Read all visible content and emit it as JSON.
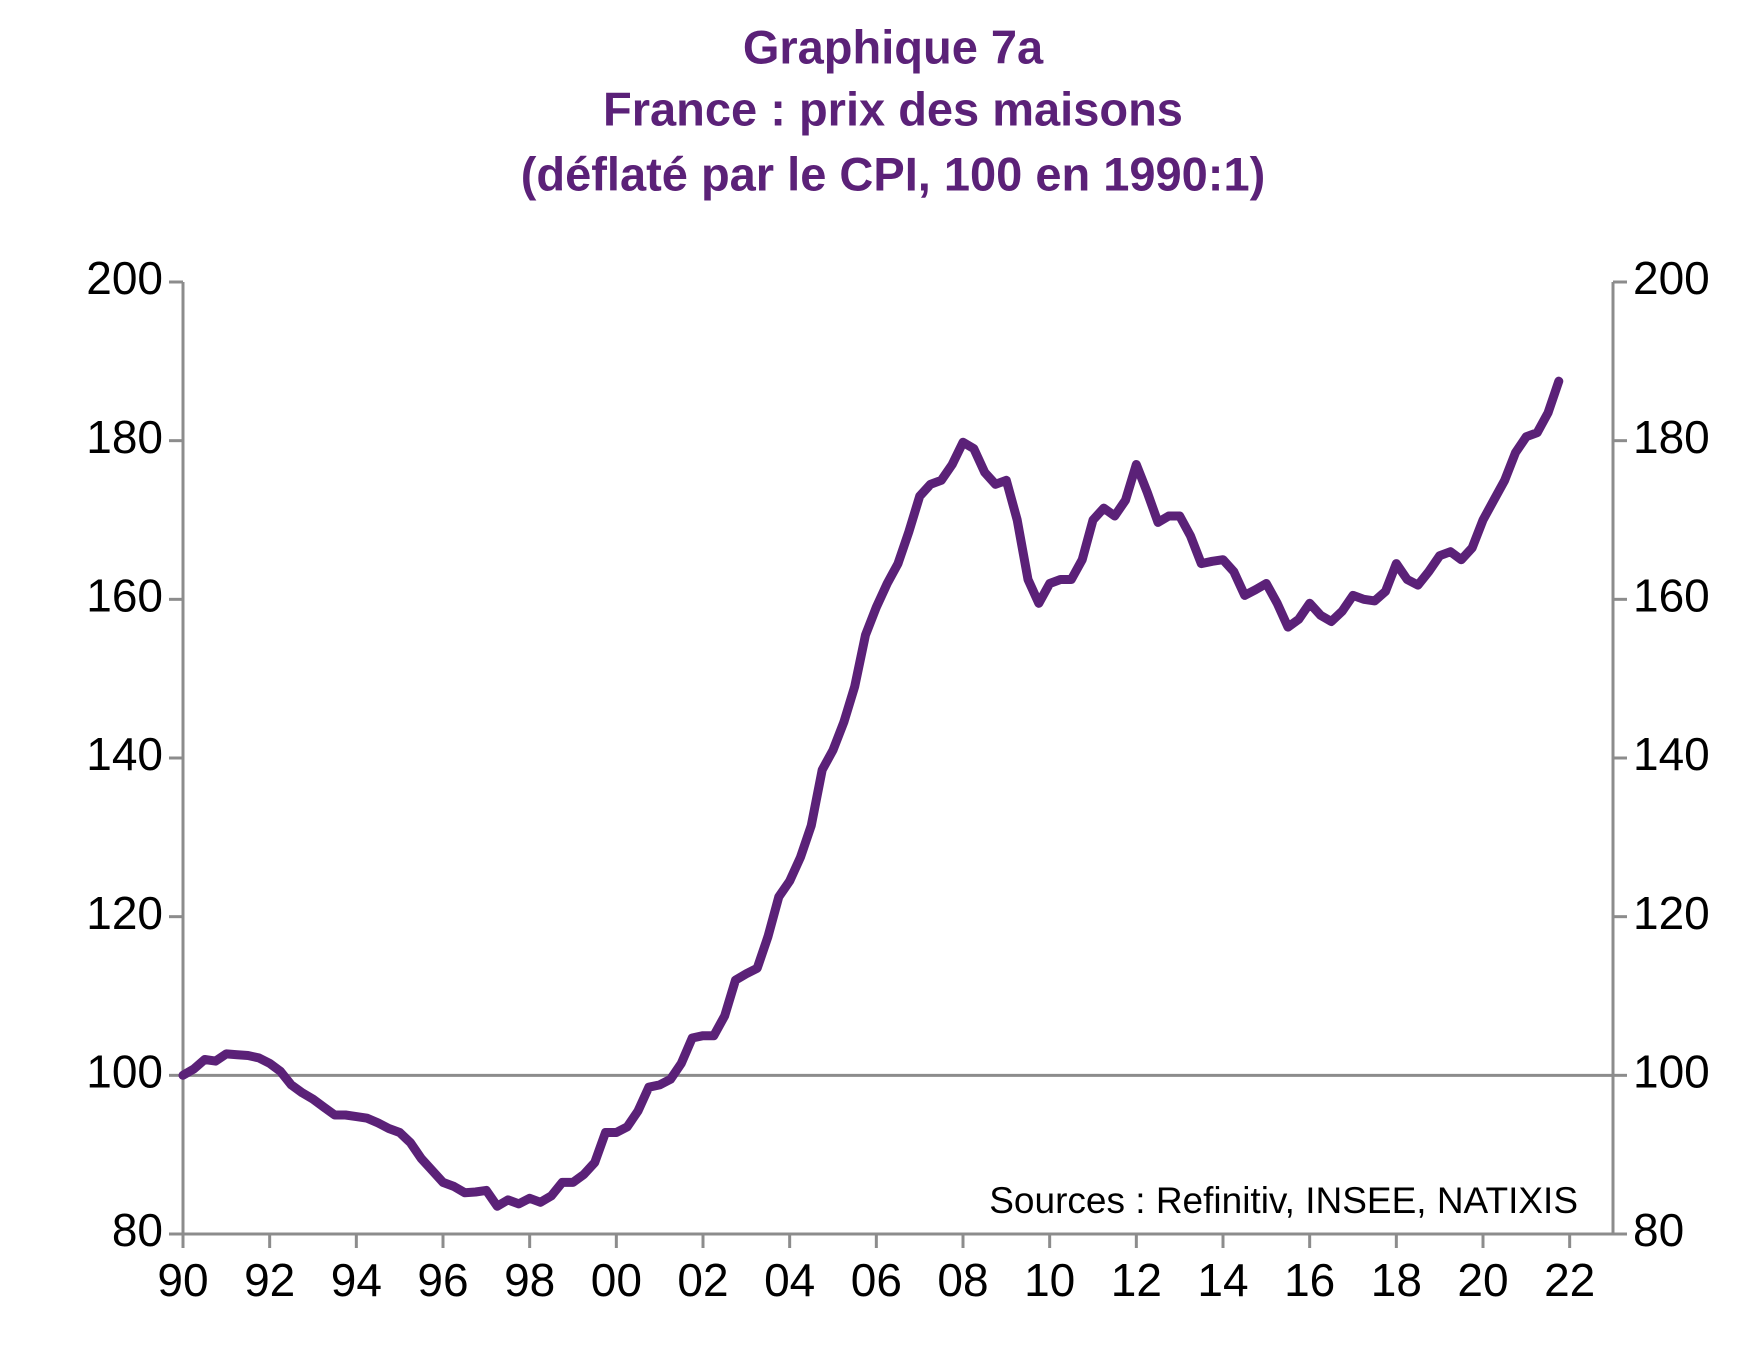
{
  "chart_data": {
    "type": "line",
    "title": [
      "Graphique 7a",
      "France : prix des maisons",
      "(déflaté par le CPI, 100 en 1990:1)"
    ],
    "annotation": "Sources : Refinitiv, INSEE, NATIXIS",
    "reference_line": 100,
    "xlim": [
      1990,
      2023
    ],
    "ylim": [
      80,
      200
    ],
    "yticks": [
      80,
      100,
      120,
      140,
      160,
      180,
      200
    ],
    "xticks": [
      {
        "value": 1990,
        "label": "90"
      },
      {
        "value": 1992,
        "label": "92"
      },
      {
        "value": 1994,
        "label": "94"
      },
      {
        "value": 1996,
        "label": "96"
      },
      {
        "value": 1998,
        "label": "98"
      },
      {
        "value": 2000,
        "label": "00"
      },
      {
        "value": 2002,
        "label": "02"
      },
      {
        "value": 2004,
        "label": "04"
      },
      {
        "value": 2006,
        "label": "06"
      },
      {
        "value": 2008,
        "label": "08"
      },
      {
        "value": 2010,
        "label": "10"
      },
      {
        "value": 2012,
        "label": "12"
      },
      {
        "value": 2014,
        "label": "14"
      },
      {
        "value": 2016,
        "label": "16"
      },
      {
        "value": 2018,
        "label": "18"
      },
      {
        "value": 2020,
        "label": "20"
      },
      {
        "value": 2022,
        "label": "22"
      }
    ],
    "x": [
      1990,
      1990.25,
      1990.5,
      1990.75,
      1991,
      1991.25,
      1991.5,
      1991.75,
      1992,
      1992.25,
      1992.5,
      1992.75,
      1993,
      1993.25,
      1993.5,
      1993.75,
      1994,
      1994.25,
      1994.5,
      1994.75,
      1995,
      1995.25,
      1995.5,
      1995.75,
      1996,
      1996.25,
      1996.5,
      1996.75,
      1997,
      1997.25,
      1997.5,
      1997.75,
      1998,
      1998.25,
      1998.5,
      1998.75,
      1999,
      1999.25,
      1999.5,
      1999.75,
      2000,
      2000.25,
      2000.5,
      2000.75,
      2001,
      2001.25,
      2001.5,
      2001.75,
      2002,
      2002.25,
      2002.5,
      2002.75,
      2003,
      2003.25,
      2003.5,
      2003.75,
      2004,
      2004.25,
      2004.5,
      2004.75,
      2005,
      2005.25,
      2005.5,
      2005.75,
      2006,
      2006.25,
      2006.5,
      2006.75,
      2007,
      2007.25,
      2007.5,
      2007.75,
      2008,
      2008.25,
      2008.5,
      2008.75,
      2009,
      2009.25,
      2009.5,
      2009.75,
      2010,
      2010.25,
      2010.5,
      2010.75,
      2011,
      2011.25,
      2011.5,
      2011.75,
      2012,
      2012.25,
      2012.5,
      2012.75,
      2013,
      2013.25,
      2013.5,
      2013.75,
      2014,
      2014.25,
      2014.5,
      2014.75,
      2015,
      2015.25,
      2015.5,
      2015.75,
      2016,
      2016.25,
      2016.5,
      2016.75,
      2017,
      2017.25,
      2017.5,
      2017.75,
      2018,
      2018.25,
      2018.5,
      2018.75,
      2019,
      2019.25,
      2019.5,
      2019.75,
      2020,
      2020.25,
      2020.5,
      2020.75,
      2021,
      2021.25,
      2021.5,
      2021.75
    ],
    "series": [
      {
        "color": "#5b2178",
        "values": [
          100,
          100.8,
          102,
          101.8,
          102.7,
          102.6,
          102.5,
          102.2,
          101.5,
          100.5,
          98.8,
          97.8,
          97,
          96,
          95,
          95,
          94.8,
          94.6,
          94,
          93.3,
          92.8,
          91.5,
          89.5,
          88,
          86.5,
          86,
          85.2,
          85.3,
          85.5,
          83.5,
          84.3,
          83.8,
          84.5,
          84,
          84.8,
          86.5,
          86.5,
          87.5,
          89,
          92.8,
          92.8,
          93.5,
          95.5,
          98.5,
          98.8,
          99.5,
          101.5,
          104.7,
          105,
          105,
          107.5,
          112,
          112.8,
          113.5,
          117.5,
          122.5,
          124.5,
          127.5,
          131.5,
          138.5,
          141,
          144.5,
          149,
          155.5,
          159,
          162,
          164.5,
          168.5,
          173,
          174.5,
          175,
          177,
          179.8,
          179,
          176,
          174.5,
          175,
          170,
          162.5,
          159.5,
          162,
          162.5,
          162.5,
          165,
          170,
          171.5,
          170.5,
          172.5,
          177,
          173.5,
          169.7,
          170.5,
          170.5,
          168,
          164.5,
          164.8,
          165,
          163.5,
          160.5,
          161.2,
          162,
          159.5,
          156.5,
          157.5,
          159.5,
          158,
          157.2,
          158.5,
          160.5,
          160,
          159.8,
          161,
          164.5,
          162.5,
          161.8,
          163.5,
          165.5,
          166,
          165,
          166.5,
          170,
          172.5,
          175,
          178.5,
          180.5,
          181,
          183.5,
          187.5
        ]
      }
    ]
  }
}
